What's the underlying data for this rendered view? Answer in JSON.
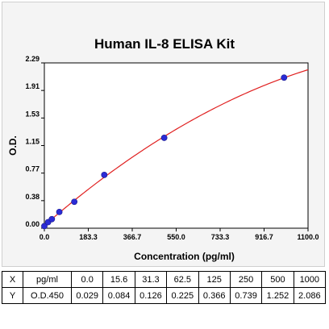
{
  "chart_data": {
    "type": "scatter",
    "title": "Human IL-8 ELISA Kit",
    "xlabel": "Concentration (pg/ml)",
    "ylabel": "O.D.",
    "xlim": [
      0,
      1100
    ],
    "ylim": [
      0,
      2.29
    ],
    "x_ticks": [
      "0.0",
      "183.3",
      "366.7",
      "550.0",
      "733.3",
      "916.7",
      "1100.0"
    ],
    "y_ticks": [
      "0.00",
      "0.38",
      "0.77",
      "1.15",
      "1.53",
      "1.91",
      "2.29"
    ],
    "series": [
      {
        "points": [
          {
            "x": 0,
            "y": 0.029
          },
          {
            "x": 15.6,
            "y": 0.084
          },
          {
            "x": 31.3,
            "y": 0.126
          },
          {
            "x": 62.5,
            "y": 0.225
          },
          {
            "x": 125,
            "y": 0.366
          },
          {
            "x": 250,
            "y": 0.739
          },
          {
            "x": 500,
            "y": 1.252
          },
          {
            "x": 1000,
            "y": 2.086
          }
        ],
        "marker_color": "#2b2bd6",
        "fit_line": true,
        "fit_color": "#e02020"
      }
    ],
    "grid": false,
    "legend": "none"
  },
  "table": {
    "rows": [
      [
        "X",
        "pg/ml",
        "0.0",
        "15.6",
        "31.3",
        "62.5",
        "125",
        "250",
        "500",
        "1000"
      ],
      [
        "Y",
        "O.D.450",
        "0.029",
        "0.084",
        "0.126",
        "0.225",
        "0.366",
        "0.739",
        "1.252",
        "2.086"
      ]
    ]
  }
}
